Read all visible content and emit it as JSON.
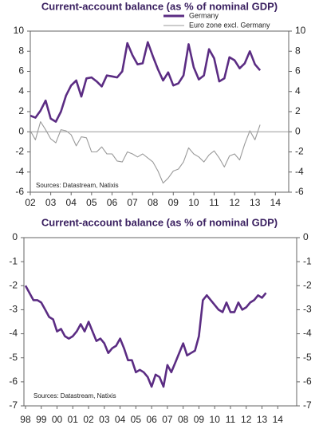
{
  "chart_data": [
    {
      "type": "line",
      "title": "Current-account balance (as % of nominal GDP)",
      "note": "Sources: Datastream, Natixis",
      "x": [
        2002,
        2002.25,
        2002.5,
        2002.75,
        2003,
        2003.25,
        2003.5,
        2003.75,
        2004,
        2004.25,
        2004.5,
        2004.75,
        2005,
        2005.25,
        2005.5,
        2005.75,
        2006,
        2006.25,
        2006.5,
        2006.75,
        2007,
        2007.25,
        2007.5,
        2007.75,
        2008,
        2008.25,
        2008.5,
        2008.75,
        2009,
        2009.25,
        2009.5,
        2009.75,
        2010,
        2010.25,
        2010.5,
        2010.75,
        2011,
        2011.25,
        2011.5,
        2011.75,
        2012,
        2012.25,
        2012.5,
        2012.75,
        2013,
        2013.25
      ],
      "series": [
        {
          "name": "Germany",
          "color": "#5b2c83",
          "values": [
            1.6,
            1.4,
            2.1,
            3.1,
            1.3,
            1.0,
            2.0,
            3.6,
            4.6,
            5.1,
            3.5,
            5.3,
            5.4,
            5.0,
            4.5,
            5.6,
            5.5,
            5.4,
            6.0,
            8.8,
            7.6,
            6.7,
            6.8,
            8.9,
            7.5,
            6.2,
            5.1,
            5.9,
            4.6,
            4.8,
            5.6,
            8.7,
            6.4,
            5.2,
            5.6,
            8.2,
            7.3,
            5.0,
            5.3,
            7.4,
            7.1,
            6.3,
            6.8,
            8.0,
            6.7,
            6.1
          ]
        },
        {
          "name": "Euro zone excl. Germany",
          "color": "#9a9a9a",
          "values": [
            0.1,
            -0.8,
            1.0,
            0.2,
            -0.7,
            -1.1,
            0.2,
            0.1,
            -0.3,
            -1.4,
            -0.5,
            -0.6,
            -2.0,
            -2.0,
            -1.5,
            -2.2,
            -2.2,
            -2.9,
            -3.0,
            -2.0,
            -2.2,
            -2.5,
            -2.2,
            -2.6,
            -3.0,
            -3.9,
            -5.1,
            -4.6,
            -3.9,
            -3.7,
            -3.0,
            -1.6,
            -2.2,
            -2.5,
            -3.0,
            -2.3,
            -1.9,
            -2.6,
            -3.5,
            -2.4,
            -2.2,
            -2.8,
            -1.2,
            0.1,
            -0.8,
            0.7
          ]
        }
      ],
      "xlim": [
        2002,
        2014.65
      ],
      "xticks": [
        {
          "value": 2002,
          "label": "02"
        },
        {
          "value": 2003,
          "label": "03"
        },
        {
          "value": 2004,
          "label": "04"
        },
        {
          "value": 2005,
          "label": "05"
        },
        {
          "value": 2006,
          "label": "06"
        },
        {
          "value": 2007,
          "label": "07"
        },
        {
          "value": 2008,
          "label": "08"
        },
        {
          "value": 2009,
          "label": "09"
        },
        {
          "value": 2010,
          "label": "10"
        },
        {
          "value": 2011,
          "label": "11"
        },
        {
          "value": 2012,
          "label": "12"
        },
        {
          "value": 2013,
          "label": "13"
        },
        {
          "value": 2014,
          "label": "14"
        }
      ],
      "ylim": [
        -6,
        10
      ],
      "yticks": [
        -6,
        -4,
        -2,
        0,
        2,
        4,
        6,
        8,
        10
      ],
      "y2lim": [
        -6,
        10
      ],
      "y2ticks": [
        -6,
        -4,
        -2,
        0,
        2,
        4,
        6,
        8,
        10
      ],
      "zero_line": true,
      "legend": "top-right"
    },
    {
      "type": "line",
      "title": "Current-account balance (as % of nominal GDP)",
      "note": "Sources: Datastream, Natixis",
      "x": [
        1998,
        1998.25,
        1998.5,
        1998.75,
        1999,
        1999.25,
        1999.5,
        1999.75,
        2000,
        2000.25,
        2000.5,
        2000.75,
        2001,
        2001.25,
        2001.5,
        2001.75,
        2002,
        2002.25,
        2002.5,
        2002.75,
        2003,
        2003.25,
        2003.5,
        2003.75,
        2004,
        2004.25,
        2004.5,
        2004.75,
        2005,
        2005.25,
        2005.5,
        2005.75,
        2006,
        2006.25,
        2006.5,
        2006.75,
        2007,
        2007.25,
        2007.5,
        2007.75,
        2008,
        2008.25,
        2008.5,
        2008.75,
        2009,
        2009.25,
        2009.5,
        2009.75,
        2010,
        2010.25,
        2010.5,
        2010.75,
        2011,
        2011.25,
        2011.5,
        2011.75,
        2012,
        2012.25,
        2012.5,
        2012.75,
        2013,
        2013.25
      ],
      "series": [
        {
          "color": "#5b2c83",
          "values": [
            -2.0,
            -2.3,
            -2.6,
            -2.6,
            -2.7,
            -3.0,
            -3.3,
            -3.4,
            -3.9,
            -3.8,
            -4.1,
            -4.2,
            -4.1,
            -3.9,
            -3.6,
            -3.9,
            -3.5,
            -3.9,
            -4.3,
            -4.2,
            -4.4,
            -4.8,
            -4.6,
            -4.5,
            -4.2,
            -4.6,
            -5.1,
            -5.1,
            -5.6,
            -5.5,
            -5.6,
            -5.8,
            -6.2,
            -5.7,
            -5.8,
            -6.2,
            -5.3,
            -5.6,
            -5.2,
            -4.8,
            -4.4,
            -4.9,
            -4.8,
            -4.7,
            -4.1,
            -2.6,
            -2.4,
            -2.6,
            -2.8,
            -3.0,
            -3.1,
            -2.7,
            -3.1,
            -3.1,
            -2.7,
            -3.0,
            -2.9,
            -2.7,
            -2.6,
            -2.4,
            -2.5,
            -2.3
          ]
        }
      ],
      "xlim": [
        1997.9,
        2015.2
      ],
      "xticks": [
        {
          "value": 1998,
          "label": "98"
        },
        {
          "value": 1999,
          "label": "99"
        },
        {
          "value": 2000,
          "label": "00"
        },
        {
          "value": 2001,
          "label": "01"
        },
        {
          "value": 2002,
          "label": "02"
        },
        {
          "value": 2003,
          "label": "03"
        },
        {
          "value": 2004,
          "label": "04"
        },
        {
          "value": 2005,
          "label": "05"
        },
        {
          "value": 2006,
          "label": "06"
        },
        {
          "value": 2007,
          "label": "07"
        },
        {
          "value": 2008,
          "label": "08"
        },
        {
          "value": 2009,
          "label": "09"
        },
        {
          "value": 2010,
          "label": "10"
        },
        {
          "value": 2011,
          "label": "11"
        },
        {
          "value": 2012,
          "label": "12"
        },
        {
          "value": 2013,
          "label": "13"
        },
        {
          "value": 2014,
          "label": "14"
        }
      ],
      "ylim": [
        -7,
        0
      ],
      "yticks": [
        -7,
        -6,
        -5,
        -4,
        -3,
        -2,
        -1,
        0
      ],
      "y2lim": [
        -7,
        0
      ],
      "y2ticks": [
        -7,
        -6,
        -5,
        -4,
        -3,
        -2,
        -1,
        0
      ],
      "zero_line": false
    }
  ]
}
